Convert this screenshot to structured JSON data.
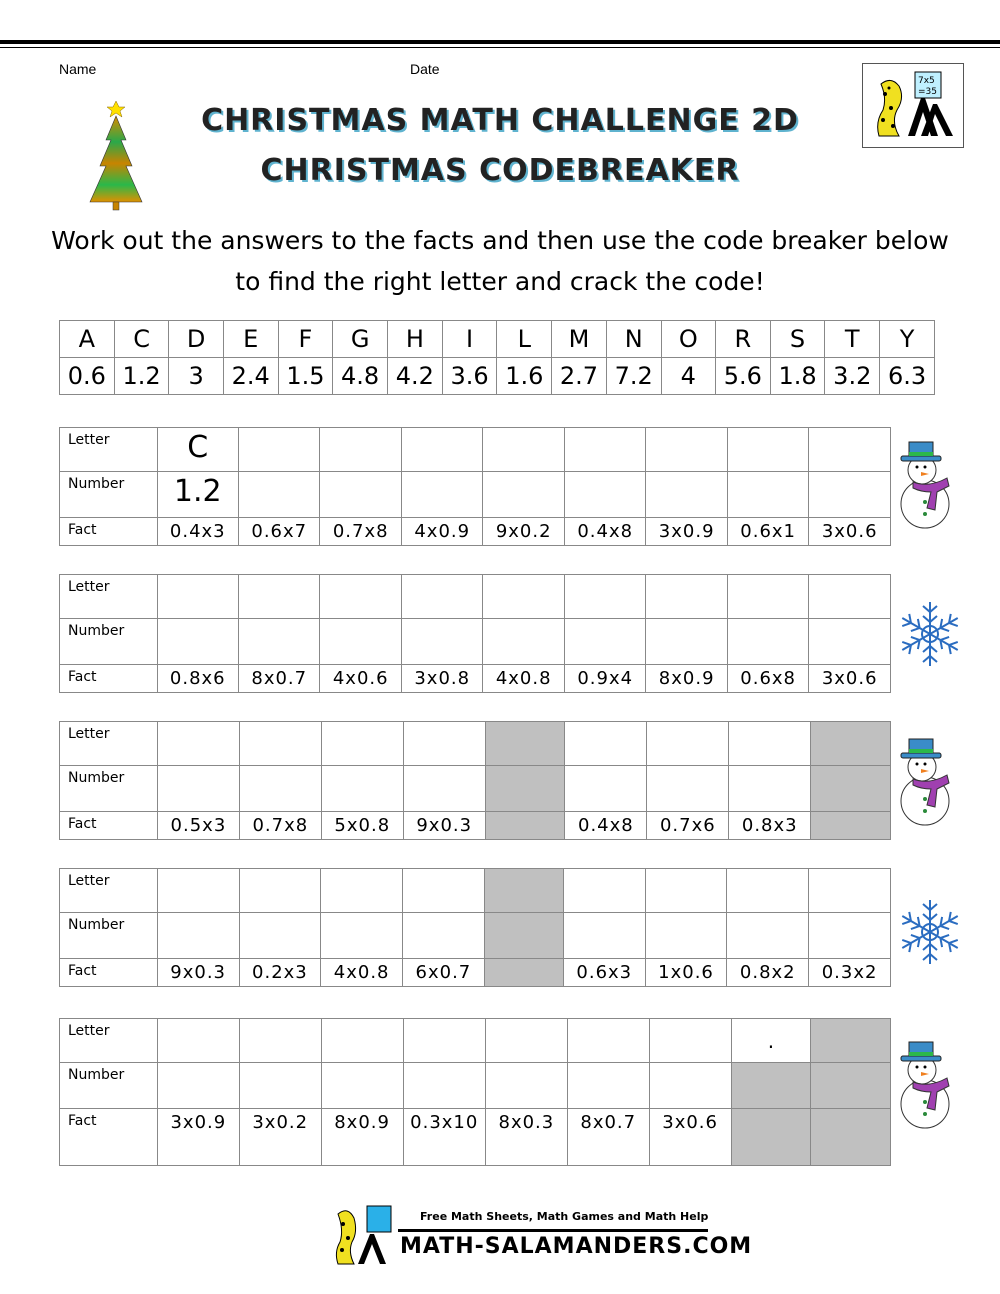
{
  "header": {
    "name_label": "Name",
    "date_label": "Date",
    "title_line1": "CHRISTMAS MATH CHALLENGE 2D",
    "title_line2": "CHRISTMAS CODEBREAKER",
    "logo_text": "7x5 =35"
  },
  "instructions": {
    "line1": "Work out the answers to the facts and then use the code breaker below",
    "line2": "to find the right letter and crack the code!"
  },
  "code_breaker": {
    "letters": [
      "A",
      "C",
      "D",
      "E",
      "F",
      "G",
      "H",
      "I",
      "L",
      "M",
      "N",
      "O",
      "R",
      "S",
      "T",
      "Y"
    ],
    "numbers": [
      "0.6",
      "1.2",
      "3",
      "2.4",
      "1.5",
      "4.8",
      "4.2",
      "3.6",
      "1.6",
      "2.7",
      "7.2",
      "4",
      "5.6",
      "1.8",
      "3.2",
      "6.3"
    ]
  },
  "row_labels": {
    "letter": "Letter",
    "number": "Number",
    "fact": "Fact"
  },
  "puzzles": [
    {
      "decoration": "snowman",
      "cols": [
        {
          "letter": "C",
          "number": "1.2",
          "fact": "0.4x3",
          "shaded": [
            false,
            false,
            false
          ]
        },
        {
          "letter": "",
          "number": "",
          "fact": "0.6x7",
          "shaded": [
            false,
            false,
            false
          ]
        },
        {
          "letter": "",
          "number": "",
          "fact": "0.7x8",
          "shaded": [
            false,
            false,
            false
          ]
        },
        {
          "letter": "",
          "number": "",
          "fact": "4x0.9",
          "shaded": [
            false,
            false,
            false
          ]
        },
        {
          "letter": "",
          "number": "",
          "fact": "9x0.2",
          "shaded": [
            false,
            false,
            false
          ]
        },
        {
          "letter": "",
          "number": "",
          "fact": "0.4x8",
          "shaded": [
            false,
            false,
            false
          ]
        },
        {
          "letter": "",
          "number": "",
          "fact": "3x0.9",
          "shaded": [
            false,
            false,
            false
          ]
        },
        {
          "letter": "",
          "number": "",
          "fact": "0.6x1",
          "shaded": [
            false,
            false,
            false
          ]
        },
        {
          "letter": "",
          "number": "",
          "fact": "3x0.6",
          "shaded": [
            false,
            false,
            false
          ]
        }
      ]
    },
    {
      "decoration": "snowflake",
      "cols": [
        {
          "letter": "",
          "number": "",
          "fact": "0.8x6",
          "shaded": [
            false,
            false,
            false
          ]
        },
        {
          "letter": "",
          "number": "",
          "fact": "8x0.7",
          "shaded": [
            false,
            false,
            false
          ]
        },
        {
          "letter": "",
          "number": "",
          "fact": "4x0.6",
          "shaded": [
            false,
            false,
            false
          ]
        },
        {
          "letter": "",
          "number": "",
          "fact": "3x0.8",
          "shaded": [
            false,
            false,
            false
          ]
        },
        {
          "letter": "",
          "number": "",
          "fact": "4x0.8",
          "shaded": [
            false,
            false,
            false
          ]
        },
        {
          "letter": "",
          "number": "",
          "fact": "0.9x4",
          "shaded": [
            false,
            false,
            false
          ]
        },
        {
          "letter": "",
          "number": "",
          "fact": "8x0.9",
          "shaded": [
            false,
            false,
            false
          ]
        },
        {
          "letter": "",
          "number": "",
          "fact": "0.6x8",
          "shaded": [
            false,
            false,
            false
          ]
        },
        {
          "letter": "",
          "number": "",
          "fact": "3x0.6",
          "shaded": [
            false,
            false,
            false
          ]
        }
      ]
    },
    {
      "decoration": "snowman",
      "cols": [
        {
          "letter": "",
          "number": "",
          "fact": "0.5x3",
          "shaded": [
            false,
            false,
            false
          ]
        },
        {
          "letter": "",
          "number": "",
          "fact": "0.7x8",
          "shaded": [
            false,
            false,
            false
          ]
        },
        {
          "letter": "",
          "number": "",
          "fact": "5x0.8",
          "shaded": [
            false,
            false,
            false
          ]
        },
        {
          "letter": "",
          "number": "",
          "fact": "9x0.3",
          "shaded": [
            false,
            false,
            false
          ]
        },
        {
          "letter": "",
          "number": "",
          "fact": "",
          "shaded": [
            true,
            true,
            true
          ]
        },
        {
          "letter": "",
          "number": "",
          "fact": "0.4x8",
          "shaded": [
            false,
            false,
            false
          ]
        },
        {
          "letter": "",
          "number": "",
          "fact": "0.7x6",
          "shaded": [
            false,
            false,
            false
          ]
        },
        {
          "letter": "",
          "number": "",
          "fact": "0.8x3",
          "shaded": [
            false,
            false,
            false
          ]
        },
        {
          "letter": "",
          "number": "",
          "fact": "",
          "shaded": [
            true,
            true,
            true
          ]
        }
      ]
    },
    {
      "decoration": "snowflake",
      "cols": [
        {
          "letter": "",
          "number": "",
          "fact": "9x0.3",
          "shaded": [
            false,
            false,
            false
          ]
        },
        {
          "letter": "",
          "number": "",
          "fact": "0.2x3",
          "shaded": [
            false,
            false,
            false
          ]
        },
        {
          "letter": "",
          "number": "",
          "fact": "4x0.8",
          "shaded": [
            false,
            false,
            false
          ]
        },
        {
          "letter": "",
          "number": "",
          "fact": "6x0.7",
          "shaded": [
            false,
            false,
            false
          ]
        },
        {
          "letter": "",
          "number": "",
          "fact": "",
          "shaded": [
            true,
            true,
            true
          ]
        },
        {
          "letter": "",
          "number": "",
          "fact": "0.6x3",
          "shaded": [
            false,
            false,
            false
          ]
        },
        {
          "letter": "",
          "number": "",
          "fact": "1x0.6",
          "shaded": [
            false,
            false,
            false
          ]
        },
        {
          "letter": "",
          "number": "",
          "fact": "0.8x2",
          "shaded": [
            false,
            false,
            false
          ]
        },
        {
          "letter": "",
          "number": "",
          "fact": "0.3x2",
          "shaded": [
            false,
            false,
            false
          ]
        }
      ]
    },
    {
      "decoration": "snowman",
      "cols": [
        {
          "letter": "",
          "number": "",
          "fact": "3x0.9",
          "shaded": [
            false,
            false,
            false
          ]
        },
        {
          "letter": "",
          "number": "",
          "fact": "3x0.2",
          "shaded": [
            false,
            false,
            false
          ]
        },
        {
          "letter": "",
          "number": "",
          "fact": "8x0.9",
          "shaded": [
            false,
            false,
            false
          ]
        },
        {
          "letter": "",
          "number": "",
          "fact": "0.3x10",
          "shaded": [
            false,
            false,
            false
          ]
        },
        {
          "letter": "",
          "number": "",
          "fact": "8x0.3",
          "shaded": [
            false,
            false,
            false
          ]
        },
        {
          "letter": "",
          "number": "",
          "fact": "8x0.7",
          "shaded": [
            false,
            false,
            false
          ]
        },
        {
          "letter": "",
          "number": "",
          "fact": "3x0.6",
          "shaded": [
            false,
            false,
            false
          ]
        },
        {
          "letter": ".",
          "number": "",
          "fact": "",
          "shaded": [
            false,
            true,
            true
          ]
        },
        {
          "letter": "",
          "number": "",
          "fact": "",
          "shaded": [
            true,
            true,
            true
          ]
        }
      ]
    }
  ],
  "footer": {
    "tagline": "Free Math Sheets, Math Games and Math Help",
    "site": "MATH-SALAMANDERS.COM"
  },
  "colors": {
    "shade": "#c0c0c0",
    "title_shadow": "#5fb3cf"
  }
}
